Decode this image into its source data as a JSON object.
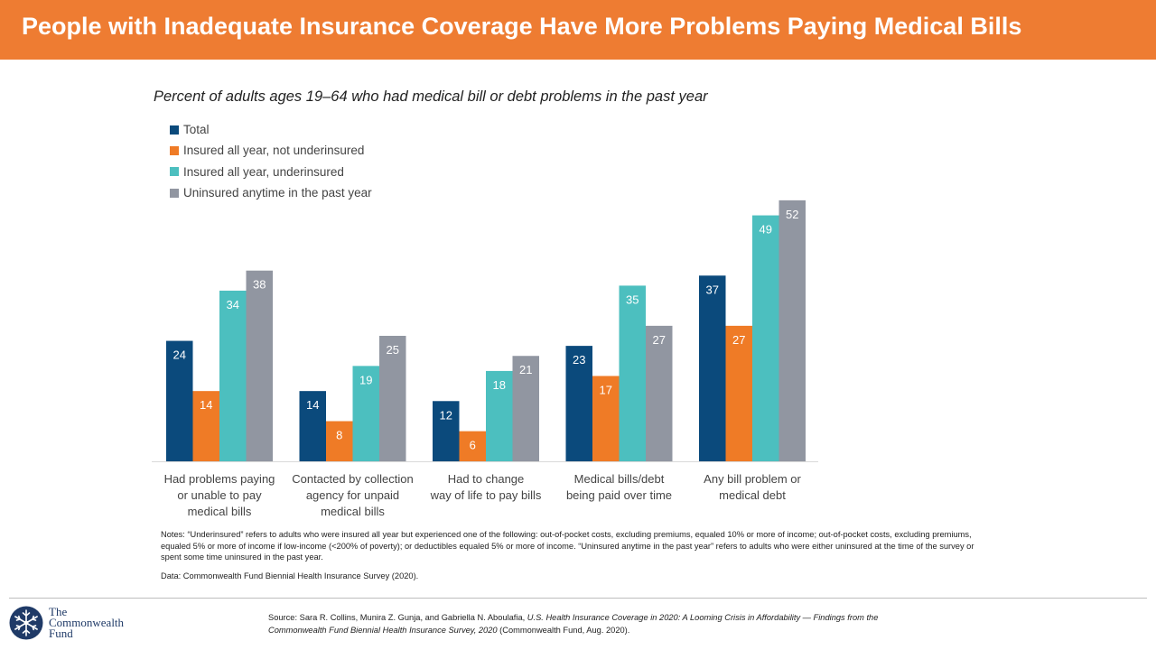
{
  "header": {
    "title": "People with Inadequate Insurance Coverage Have More Problems Paying Medical Bills",
    "background": "#ee7c32"
  },
  "chart_data": {
    "type": "bar",
    "subtitle": "Percent of adults ages 19–64 who had medical bill or debt problems in the past year",
    "categories": [
      "Had problems paying or unable to pay medical bills",
      "Contacted by collection agency for unpaid medical bills",
      "Had to change way of life to pay bills",
      "Medical bills/debt being paid over time",
      "Any bill problem or medical debt"
    ],
    "category_lines": [
      [
        "Had problems paying",
        "or unable to pay",
        "medical bills"
      ],
      [
        "Contacted by collection",
        "agency for unpaid",
        "medical bills"
      ],
      [
        "Had to change",
        "way of life to pay bills"
      ],
      [
        "Medical bills/debt",
        "being paid over time"
      ],
      [
        "Any bill problem or",
        "medical debt"
      ]
    ],
    "series": [
      {
        "name": "Total",
        "color": "#0b4a7c",
        "values": [
          24,
          14,
          12,
          23,
          37
        ]
      },
      {
        "name": "Insured all year, not underinsured",
        "color": "#ef7b26",
        "values": [
          14,
          8,
          6,
          17,
          27
        ]
      },
      {
        "name": "Insured all year, underinsured",
        "color": "#4cbfbf",
        "values": [
          34,
          19,
          18,
          35,
          49
        ]
      },
      {
        "name": "Uninsured anytime in the past year",
        "color": "#9196a1",
        "values": [
          38,
          25,
          21,
          27,
          52
        ]
      }
    ],
    "data_labels": true,
    "grid": false,
    "legend_position": "top-left"
  },
  "notes": "Notes: “Underinsured” refers to adults who were insured all year but experienced one of the following: out-of-pocket costs, excluding premiums, equaled 10% or more of income; out-of-pocket costs, excluding premiums, equaled 5% or more of income if low-income (<200% of poverty); or deductibles equaled 5% or more of income. “Uninsured anytime in the past year” refers to adults who were either uninsured at the time of the survey or spent some time uninsured in the past year.",
  "data_note": "Data: Commonwealth Fund Biennial Health Insurance Survey (2020).",
  "source": {
    "prefix": "Source: Sara R. Collins, Munira Z. Gunja, and Gabriella N. Aboulafia, ",
    "title": "U.S. Health Insurance Coverage in 2020: A Looming Crisis in Affordability — Findings from the Commonwealth Fund Biennial Health Insurance Survey, 2020",
    "suffix": " (Commonwealth Fund, Aug. 2020)."
  },
  "logo": {
    "line1": "The",
    "line2": "Commonwealth",
    "line3": "Fund",
    "icon": "snowflake-seal-icon",
    "color": "#1f3a67"
  }
}
